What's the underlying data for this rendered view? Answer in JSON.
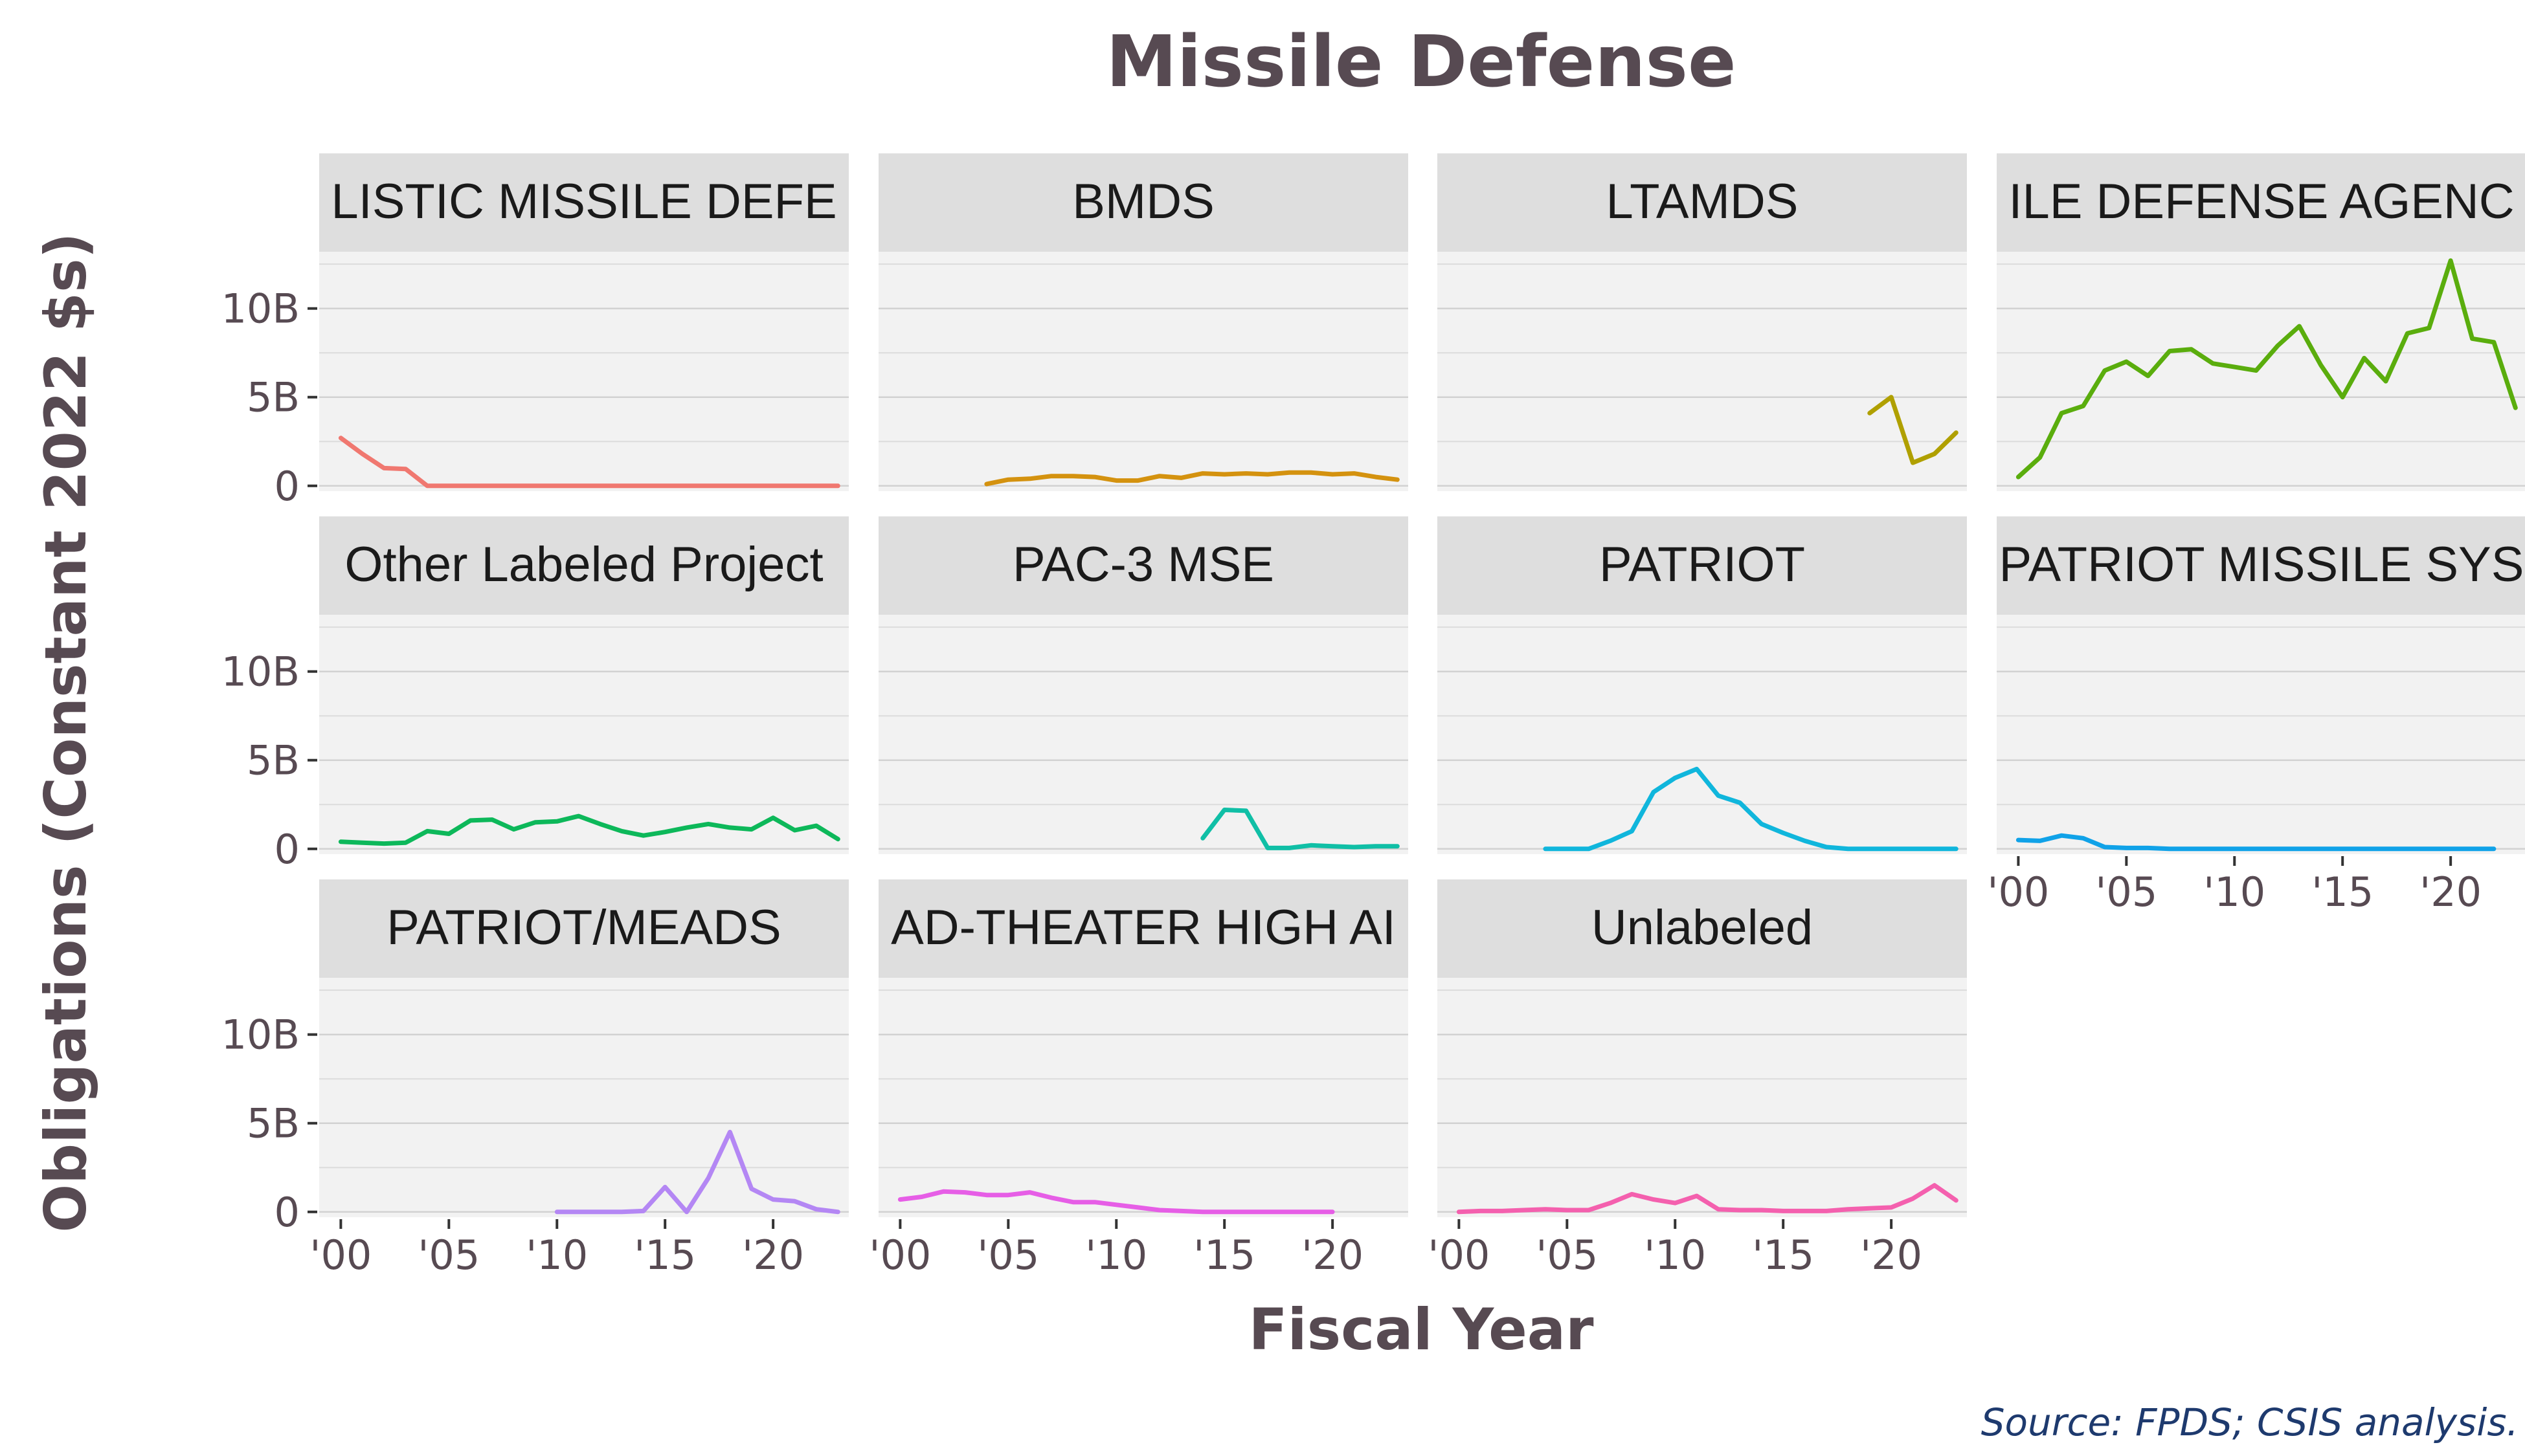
{
  "chart_data": {
    "type": "line",
    "title": "Missile Defense",
    "xlabel": "Fiscal Year",
    "ylabel": "Obligations (Constant 2022 $s)",
    "caption": "Source: FPDS; CSIS analysis.",
    "xlim": [
      1999,
      2023.5
    ],
    "ylim": [
      -0.3,
      13.2
    ],
    "x_ticks": [
      2000,
      2005,
      2010,
      2015,
      2020
    ],
    "x_tick_labels": [
      "'00",
      "'05",
      "'10",
      "'15",
      "'20"
    ],
    "y_ticks": [
      0,
      5,
      10
    ],
    "y_tick_labels": [
      "0",
      "5B",
      "10B"
    ],
    "grid": true,
    "legend": "none",
    "panels": [
      {
        "label": "LISTIC MISSILE DEFE",
        "color": "#f07870",
        "x": [
          2000,
          2001,
          2002,
          2003,
          2004,
          2005,
          2006,
          2007,
          2008,
          2009,
          2010,
          2011,
          2012,
          2013,
          2014,
          2015,
          2016,
          2017,
          2018,
          2019,
          2020,
          2021,
          2022,
          2023
        ],
        "y": [
          2.7,
          1.8,
          1.0,
          0.95,
          0.0,
          0.0,
          0.0,
          0.0,
          0.0,
          0.0,
          0.0,
          0.0,
          0.0,
          0.0,
          0.0,
          0.0,
          0.0,
          0.0,
          0.0,
          0.0,
          0.0,
          0.0,
          0.0,
          0.0
        ]
      },
      {
        "label": "BMDS",
        "color": "#d4920f",
        "x": [
          2004,
          2005,
          2006,
          2007,
          2008,
          2009,
          2010,
          2011,
          2012,
          2013,
          2014,
          2015,
          2016,
          2017,
          2018,
          2019,
          2020,
          2021,
          2022,
          2023
        ],
        "y": [
          0.1,
          0.35,
          0.4,
          0.55,
          0.55,
          0.5,
          0.3,
          0.3,
          0.55,
          0.45,
          0.7,
          0.65,
          0.7,
          0.65,
          0.75,
          0.75,
          0.65,
          0.7,
          0.5,
          0.35
        ]
      },
      {
        "label": "LTAMDS",
        "color": "#b0a000",
        "x": [
          2019,
          2020,
          2021,
          2022,
          2023
        ],
        "y": [
          4.1,
          5.0,
          1.3,
          1.8,
          3.0
        ]
      },
      {
        "label": "ILE DEFENSE AGENC",
        "color": "#5aad0d",
        "x": [
          2000,
          2001,
          2002,
          2003,
          2004,
          2005,
          2006,
          2007,
          2008,
          2009,
          2010,
          2011,
          2012,
          2013,
          2014,
          2015,
          2016,
          2017,
          2018,
          2019,
          2020,
          2021,
          2022,
          2023
        ],
        "y": [
          0.5,
          1.6,
          4.1,
          4.5,
          6.5,
          7.0,
          6.2,
          7.6,
          7.7,
          6.9,
          6.7,
          6.5,
          7.9,
          9.0,
          6.8,
          5.0,
          7.2,
          5.9,
          8.6,
          8.9,
          12.7,
          8.3,
          8.1,
          4.4
        ]
      },
      {
        "label": "Other Labeled Project",
        "color": "#0db85a",
        "x": [
          2000,
          2001,
          2002,
          2003,
          2004,
          2005,
          2006,
          2007,
          2008,
          2009,
          2010,
          2011,
          2012,
          2013,
          2014,
          2015,
          2016,
          2017,
          2018,
          2019,
          2020,
          2021,
          2022,
          2023
        ],
        "y": [
          0.4,
          0.35,
          0.3,
          0.35,
          1.0,
          0.85,
          1.6,
          1.65,
          1.1,
          1.5,
          1.55,
          1.85,
          1.4,
          1.0,
          0.75,
          0.95,
          1.2,
          1.4,
          1.2,
          1.1,
          1.75,
          1.05,
          1.3,
          0.55
        ]
      },
      {
        "label": "PAC-3 MSE",
        "color": "#10bfa6",
        "x": [
          2014,
          2015,
          2016,
          2017,
          2018,
          2019,
          2020,
          2021,
          2022,
          2023
        ],
        "y": [
          0.6,
          2.2,
          2.15,
          0.05,
          0.05,
          0.2,
          0.15,
          0.1,
          0.15,
          0.15
        ]
      },
      {
        "label": "PATRIOT",
        "color": "#10b6dc",
        "x": [
          2004,
          2005,
          2006,
          2007,
          2008,
          2009,
          2010,
          2011,
          2012,
          2013,
          2014,
          2015,
          2016,
          2017,
          2018,
          2019,
          2020,
          2021,
          2022,
          2023
        ],
        "y": [
          0.0,
          0.0,
          0.0,
          0.45,
          1.0,
          3.2,
          4.0,
          4.5,
          3.0,
          2.6,
          1.4,
          0.9,
          0.45,
          0.1,
          0.0,
          0.0,
          0.0,
          0.0,
          0.0,
          0.0
        ]
      },
      {
        "label": "PATRIOT MISSILE SYS",
        "color": "#10a2e8",
        "x": [
          2000,
          2001,
          2002,
          2003,
          2004,
          2005,
          2006,
          2007,
          2008,
          2009,
          2010,
          2011,
          2012,
          2013,
          2014,
          2015,
          2016,
          2017,
          2018,
          2019,
          2020,
          2021,
          2022
        ],
        "y": [
          0.5,
          0.45,
          0.75,
          0.6,
          0.1,
          0.05,
          0.05,
          0.0,
          0.0,
          0.0,
          0.0,
          0.0,
          0.0,
          0.0,
          0.0,
          0.0,
          0.0,
          0.0,
          0.0,
          0.0,
          0.0,
          0.0,
          0.0
        ]
      },
      {
        "label": "PATRIOT/MEADS",
        "color": "#b487f4",
        "x": [
          2010,
          2011,
          2012,
          2013,
          2014,
          2015,
          2016,
          2017,
          2018,
          2019,
          2020,
          2021,
          2022,
          2023
        ],
        "y": [
          0.0,
          0.0,
          0.0,
          0.0,
          0.05,
          1.4,
          0.0,
          1.9,
          4.5,
          1.3,
          0.7,
          0.6,
          0.15,
          0.0
        ]
      },
      {
        "label": "AD-THEATER HIGH AI",
        "color": "#e65ee6",
        "x": [
          2000,
          2001,
          2002,
          2003,
          2004,
          2005,
          2006,
          2007,
          2008,
          2009,
          2010,
          2011,
          2012,
          2013,
          2014,
          2015,
          2016,
          2017,
          2018,
          2019,
          2020
        ],
        "y": [
          0.7,
          0.85,
          1.15,
          1.1,
          0.95,
          0.95,
          1.1,
          0.8,
          0.55,
          0.55,
          0.4,
          0.25,
          0.1,
          0.05,
          0.0,
          0.0,
          0.0,
          0.0,
          0.0,
          0.0,
          0.0
        ]
      },
      {
        "label": "Unlabeled",
        "color": "#f460ae",
        "x": [
          2000,
          2001,
          2002,
          2003,
          2004,
          2005,
          2006,
          2007,
          2008,
          2009,
          2010,
          2011,
          2012,
          2013,
          2014,
          2015,
          2016,
          2017,
          2018,
          2019,
          2020,
          2021,
          2022,
          2023
        ],
        "y": [
          0.0,
          0.05,
          0.05,
          0.1,
          0.15,
          0.1,
          0.1,
          0.5,
          1.0,
          0.7,
          0.5,
          0.9,
          0.15,
          0.1,
          0.1,
          0.05,
          0.05,
          0.05,
          0.15,
          0.2,
          0.25,
          0.75,
          1.5,
          0.65
        ]
      }
    ]
  }
}
